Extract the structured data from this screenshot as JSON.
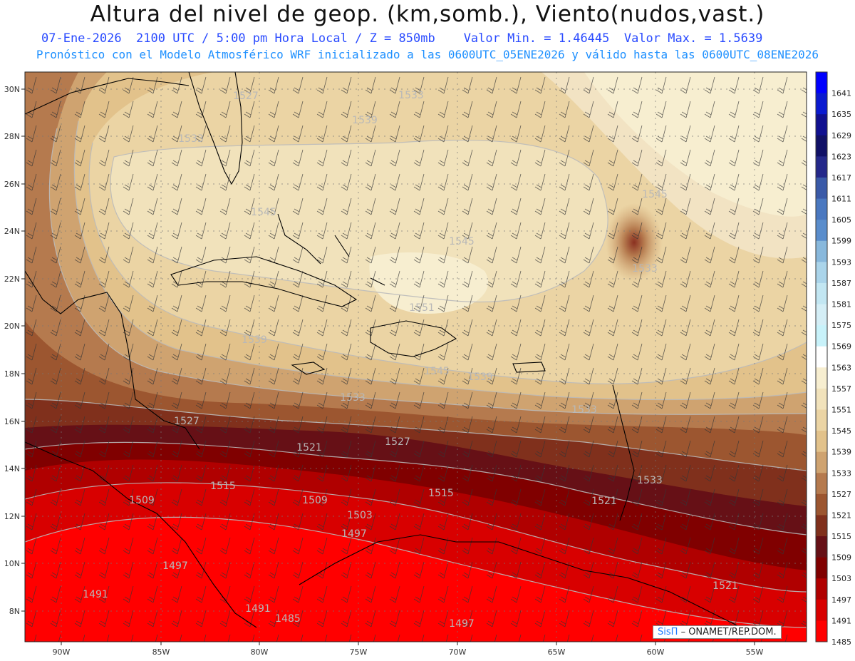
{
  "title": "Altura del nivel de geop. (km,somb.), Viento(nudos,vast.)",
  "subtitle1": {
    "left": "07-Ene-2026  2100 UTC / 5:00 pm Hora Local / Z = 850mb",
    "right": "Valor Min. = 1.46445  Valor Max. = 1.5639"
  },
  "subtitle2": "Pronóstico con el Modelo Atmosférico WRF inicializado a las 0600UTC_05ENE2026 y válido hasta las  0600UTC_08ENE2026",
  "credit": {
    "brand": "SisΠ",
    "text": "– ONAMET/REP.DOM."
  },
  "colorbar": {
    "levels": [
      "1641",
      "1635",
      "1629",
      "1623",
      "1617",
      "1611",
      "1605",
      "1599",
      "1593",
      "1587",
      "1581",
      "1575",
      "1569",
      "1563",
      "1557",
      "1551",
      "1545",
      "1539",
      "1533",
      "1527",
      "1521",
      "1515",
      "1509",
      "1503",
      "1497",
      "1491",
      "1485"
    ],
    "colors": [
      "#0000ff",
      "#0a1ad0",
      "#101090",
      "#101066",
      "#24288a",
      "#3a5aa8",
      "#4a78c0",
      "#5a8dcc",
      "#88b8dc",
      "#aad4ea",
      "#c2e6f2",
      "#d4eef6",
      "#c8f2fa",
      "#ffffff",
      "#f7eed0",
      "#f1e2bb",
      "#ebd4a4",
      "#e2c28b",
      "#cfa370",
      "#b57a4e",
      "#9c5630",
      "#80301c",
      "#661016",
      "#800000",
      "#b00000",
      "#d80000",
      "#ff0000"
    ]
  },
  "map": {
    "lat_labels": [
      "30N",
      "28N",
      "26N",
      "24N",
      "22N",
      "20N",
      "18N",
      "16N",
      "14N",
      "12N",
      "10N",
      "8N"
    ],
    "lon_labels": [
      "90W",
      "85W",
      "80W",
      "75W",
      "70W",
      "65W",
      "60W",
      "55W"
    ],
    "contour_labels": [
      "1527",
      "1533",
      "1539",
      "1533",
      "1545",
      "1545",
      "1545",
      "1551",
      "1539",
      "1533",
      "1545",
      "1539",
      "1533",
      "1527",
      "1521",
      "1527",
      "1533",
      "1521",
      "1515",
      "1509",
      "1509",
      "1515",
      "1503",
      "1497",
      "1497",
      "1491",
      "1491",
      "1485",
      "1497",
      "1521",
      "1533"
    ]
  }
}
